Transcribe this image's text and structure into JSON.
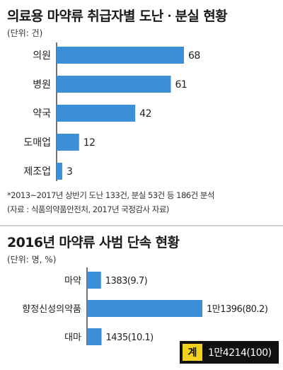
{
  "chart_data": [
    {
      "type": "bar",
      "orientation": "horizontal",
      "title": "의료용 마약류 취급자별 도난ㆍ분실 현황",
      "unit": "(단위: 건)",
      "categories": [
        "의원",
        "병원",
        "약국",
        "도매업",
        "제조업"
      ],
      "values": [
        68,
        61,
        42,
        12,
        3
      ],
      "value_labels": [
        "68",
        "61",
        "42",
        "12",
        "3"
      ],
      "xlim": [
        0,
        68
      ],
      "notes": [
        "*2013~2017년 상반기 도난 133건, 분실 53건 등 186건 분석",
        "(자료 : 식품의약품안전처, 2017년 국정감사 자료)"
      ]
    },
    {
      "type": "bar",
      "orientation": "horizontal",
      "title": "2016년 마약류 사범 단속 현황",
      "unit": "(단위: 명, %)",
      "categories": [
        "마약",
        "향정신성의약품",
        "대마"
      ],
      "values": [
        1383,
        11396,
        1435
      ],
      "percent": [
        9.7,
        80.2,
        10.1
      ],
      "value_labels": [
        "1383(9.7)",
        "1만1396(80.2)",
        "1435(10.1)"
      ],
      "xlim": [
        0,
        11396
      ],
      "total": {
        "label": "계",
        "value": "1만4214(100)"
      }
    }
  ],
  "colors": {
    "bar": "#3a8fd6",
    "total_label_bg": "#f2d21d",
    "total_box_bg": "#111111"
  }
}
